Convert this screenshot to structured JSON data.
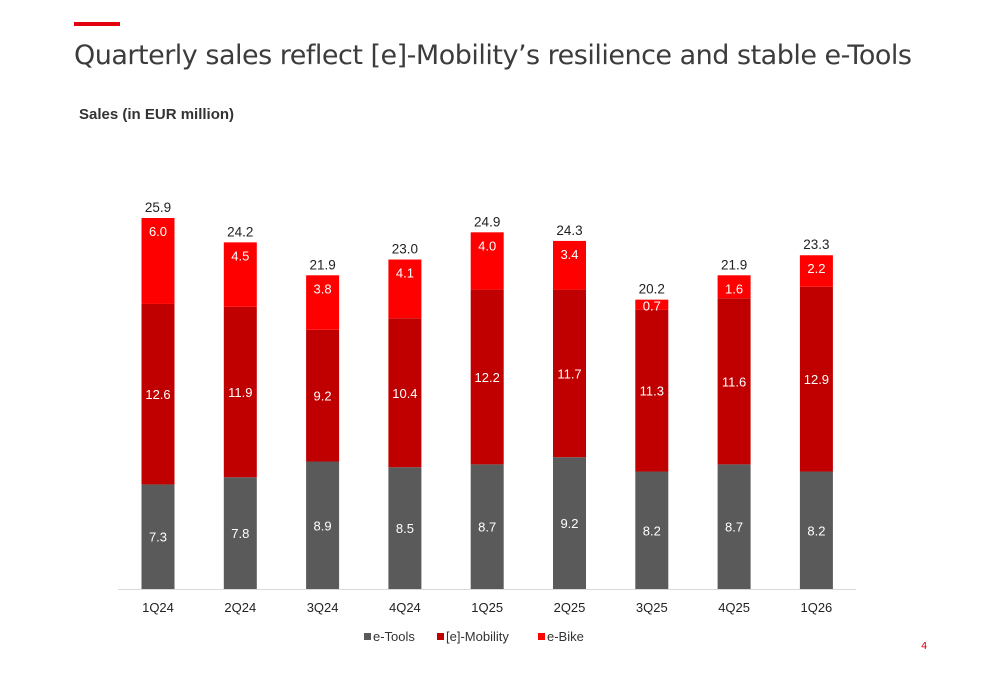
{
  "page": {
    "title": "Quarterly sales reflect [e]-Mobility’s resilience and stable e-Tools",
    "subtitle": "Sales (in EUR million)",
    "page_number": "4"
  },
  "chart_data": {
    "type": "bar",
    "stacked": true,
    "categories": [
      "1Q24",
      "2Q24",
      "3Q24",
      "4Q24",
      "1Q25",
      "2Q25",
      "3Q25",
      "4Q25",
      "1Q26"
    ],
    "series": [
      {
        "name": "e-Tools",
        "color": "#5a5a5a",
        "values": [
          7.3,
          7.8,
          8.9,
          8.5,
          8.7,
          9.2,
          8.2,
          8.7,
          8.2
        ]
      },
      {
        "name": "[e]-Mobility",
        "color": "#c00000",
        "values": [
          12.6,
          11.9,
          9.2,
          10.4,
          12.2,
          11.7,
          11.3,
          11.6,
          12.9
        ]
      },
      {
        "name": "e-Bike",
        "color": "#ff0000",
        "values": [
          6.0,
          4.5,
          3.8,
          4.1,
          4.0,
          3.4,
          0.7,
          1.6,
          2.2
        ]
      }
    ],
    "totals": [
      "25.9",
      "24.2",
      "21.9",
      "23.0",
      "24.9",
      "24.3",
      "20.2",
      "21.9",
      "23.3"
    ],
    "ylim": [
      0,
      25.9
    ],
    "grid": false,
    "legend": "bottom-center",
    "total_label_color": "#222222",
    "segment_label_color": "#ffffff",
    "axis_label_color": "#222222"
  }
}
